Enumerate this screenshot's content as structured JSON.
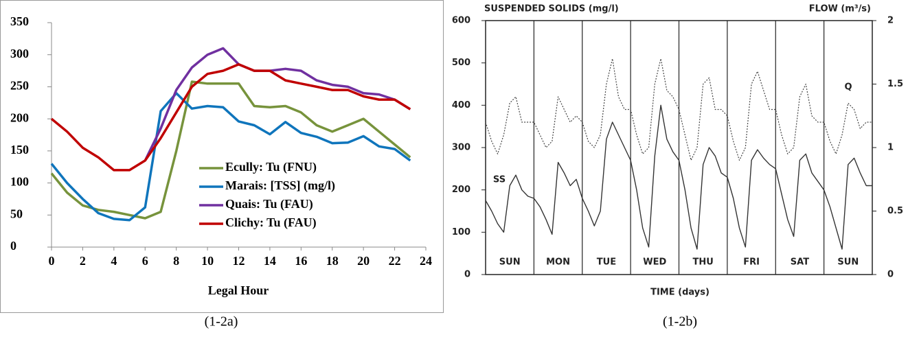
{
  "chart_data": [
    {
      "type": "line",
      "caption": "(1-2a)",
      "x_label": "Legal Hour",
      "x": [
        0,
        1,
        2,
        3,
        4,
        5,
        6,
        7,
        8,
        9,
        10,
        11,
        12,
        13,
        14,
        15,
        16,
        17,
        18,
        19,
        20,
        21,
        22,
        23
      ],
      "series": [
        {
          "name": "Ecully: Tu (FNU)",
          "color": "#77933c",
          "values": [
            115,
            85,
            65,
            58,
            55,
            50,
            45,
            55,
            150,
            258,
            255,
            255,
            255,
            220,
            218,
            220,
            210,
            190,
            180,
            190,
            200,
            180,
            160,
            140
          ]
        },
        {
          "name": "Marais: [TSS] (mg/l)",
          "color": "#0f75bc",
          "values": [
            130,
            100,
            75,
            53,
            44,
            42,
            62,
            212,
            240,
            216,
            220,
            218,
            196,
            190,
            176,
            195,
            178,
            172,
            162,
            163,
            173,
            157,
            153,
            135
          ]
        },
        {
          "name": "Quais: Tu (FAU)",
          "color": "#7030a0",
          "values": [
            null,
            null,
            null,
            null,
            null,
            null,
            135,
            185,
            245,
            280,
            300,
            310,
            285,
            275,
            275,
            278,
            275,
            260,
            253,
            250,
            240,
            238,
            230,
            215
          ]
        },
        {
          "name": "Clichy: Tu (FAU)",
          "color": "#c00000",
          "values": [
            200,
            180,
            155,
            140,
            120,
            120,
            135,
            170,
            210,
            250,
            270,
            275,
            285,
            275,
            275,
            260,
            255,
            250,
            245,
            245,
            235,
            230,
            230,
            215
          ]
        }
      ],
      "xlim": [
        0,
        24
      ],
      "xticks": [
        0,
        2,
        4,
        6,
        8,
        10,
        12,
        14,
        16,
        18,
        20,
        22,
        24
      ],
      "ylim": [
        0,
        350
      ],
      "yticks": [
        0,
        50,
        100,
        150,
        200,
        250,
        300,
        350
      ]
    },
    {
      "type": "line",
      "caption": "(1-2b)",
      "y_label": "SUSPENDED SOLIDS (mg/l)",
      "y2_label": "FLOW (m³/s)",
      "x_label": "TIME (days)",
      "day_labels": [
        "SUN",
        "MON",
        "TUE",
        "WED",
        "THU",
        "FRI",
        "SAT",
        "SUN"
      ],
      "x": [
        0,
        0.125,
        0.25,
        0.375,
        0.5,
        0.625,
        0.75,
        0.875,
        1,
        1.125,
        1.25,
        1.375,
        1.5,
        1.625,
        1.75,
        1.875,
        2,
        2.125,
        2.25,
        2.375,
        2.5,
        2.625,
        2.75,
        2.875,
        3,
        3.125,
        3.25,
        3.375,
        3.5,
        3.625,
        3.75,
        3.875,
        4,
        4.125,
        4.25,
        4.375,
        4.5,
        4.625,
        4.75,
        4.875,
        5,
        5.125,
        5.25,
        5.375,
        5.5,
        5.625,
        5.75,
        5.875,
        6,
        6.125,
        6.25,
        6.375,
        6.5,
        6.625,
        6.75,
        6.875,
        7,
        7.125,
        7.25,
        7.375,
        7.5,
        7.625,
        7.75,
        7.875,
        8
      ],
      "series": [
        {
          "name": "SS",
          "color": "#333333",
          "values": [
            175,
            150,
            120,
            100,
            210,
            235,
            200,
            185,
            180,
            160,
            130,
            95,
            265,
            240,
            210,
            225,
            180,
            150,
            115,
            150,
            320,
            360,
            330,
            300,
            270,
            200,
            110,
            65,
            280,
            400,
            320,
            290,
            270,
            200,
            110,
            60,
            260,
            300,
            280,
            240,
            230,
            180,
            110,
            65,
            270,
            295,
            275,
            260,
            250,
            190,
            130,
            90,
            270,
            285,
            240,
            220,
            200,
            160,
            110,
            60,
            260,
            275,
            240,
            210,
            210
          ]
        },
        {
          "name": "Q",
          "color": "#444444",
          "axis": "y2",
          "dashed": true,
          "values": [
            1.2,
            1.05,
            0.95,
            1.1,
            1.35,
            1.4,
            1.2,
            1.2,
            1.2,
            1.1,
            1.0,
            1.05,
            1.4,
            1.3,
            1.2,
            1.25,
            1.2,
            1.05,
            1.0,
            1.1,
            1.5,
            1.7,
            1.4,
            1.3,
            1.3,
            1.1,
            0.95,
            1.0,
            1.5,
            1.7,
            1.45,
            1.4,
            1.3,
            1.1,
            0.9,
            1.0,
            1.5,
            1.55,
            1.3,
            1.3,
            1.25,
            1.05,
            0.9,
            1.0,
            1.5,
            1.6,
            1.45,
            1.3,
            1.3,
            1.1,
            0.95,
            1.0,
            1.4,
            1.5,
            1.25,
            1.2,
            1.2,
            1.05,
            0.95,
            1.1,
            1.35,
            1.3,
            1.15,
            1.2,
            1.2
          ]
        }
      ],
      "xlim": [
        0,
        8
      ],
      "ylim": [
        0,
        600
      ],
      "yticks": [
        0,
        100,
        200,
        300,
        400,
        500,
        600
      ],
      "y2lim": [
        0,
        2
      ],
      "y2ticks": [
        0,
        0.5,
        1,
        1.5,
        2
      ]
    }
  ]
}
